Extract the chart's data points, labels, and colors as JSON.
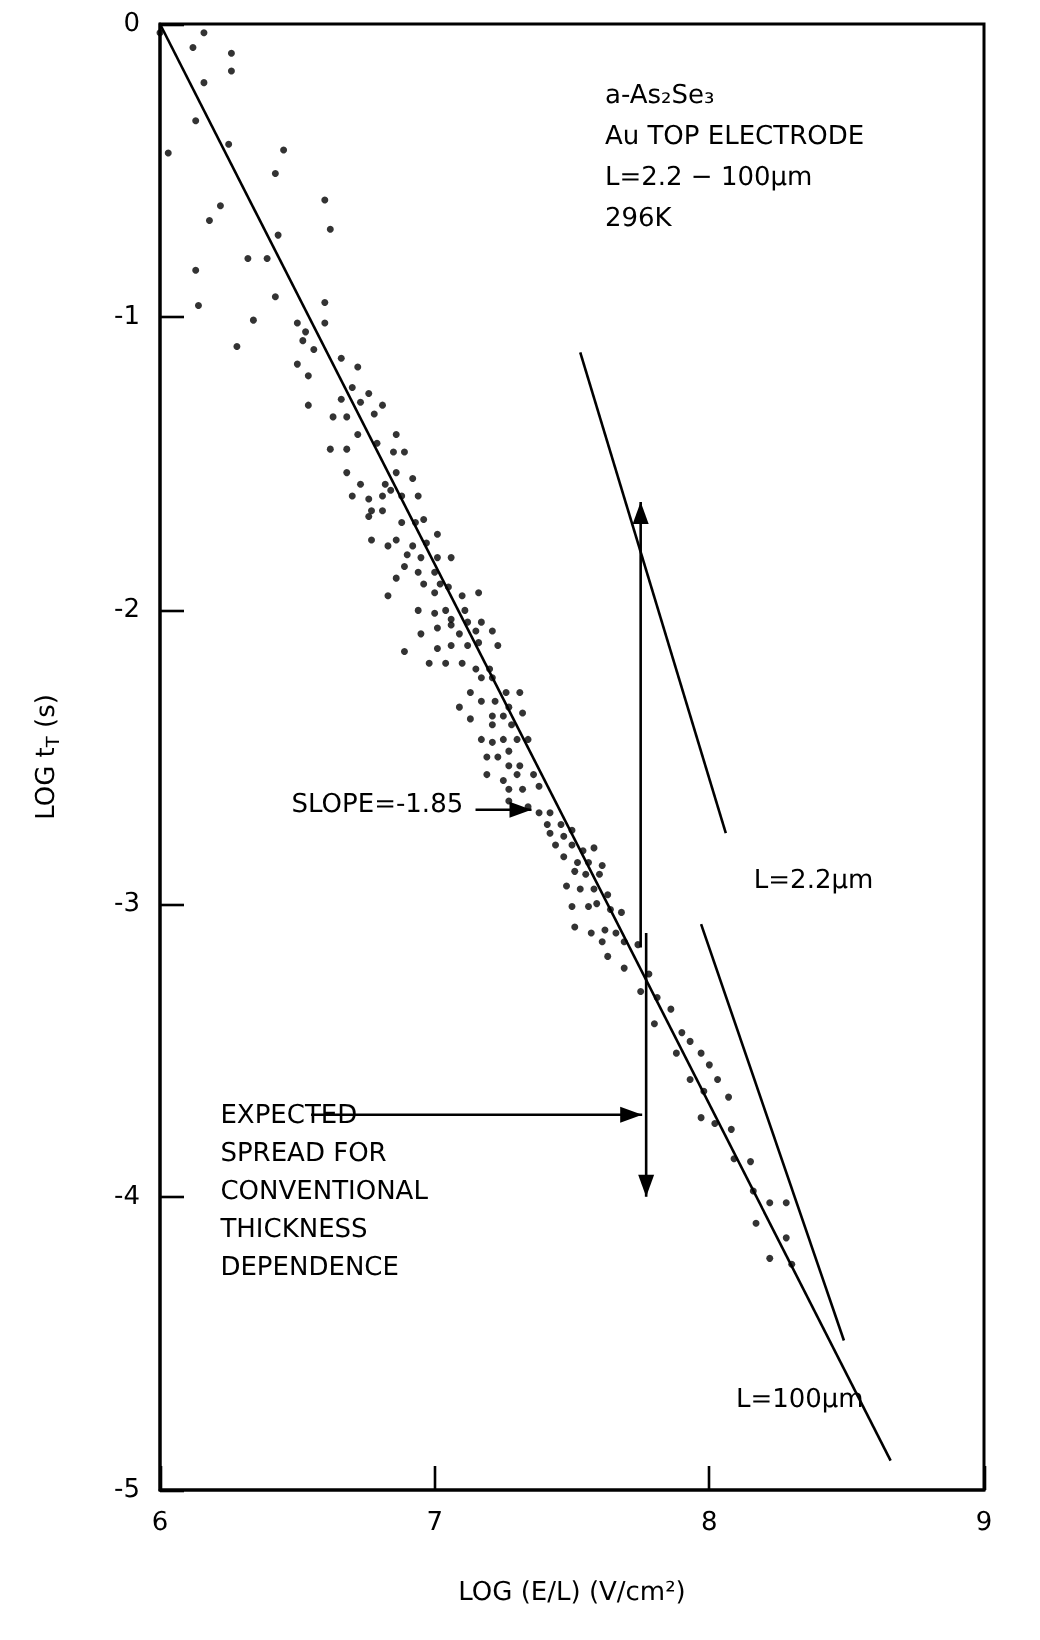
{
  "chart_data": {
    "type": "scatter",
    "xlabel": "LOG (E/L) (V/cm²)",
    "ylabel": "LOG t$_{T}$ (s)",
    "xlim": [
      6,
      9
    ],
    "xticks": [
      6,
      7,
      8,
      9
    ],
    "ylim": [
      -5,
      0
    ],
    "yticks": [
      -5,
      -4,
      -3,
      -2,
      -1,
      0
    ],
    "grid": false,
    "legend": false,
    "annotations": [
      "a-As₂Se₃",
      "Au TOP ELECTRODE",
      "L=2.2 − 100µm",
      "296K",
      "SLOPE=-1.85",
      "EXPECTED SPREAD FOR CONVENTIONAL THICKNESS DEPENDENCE"
    ],
    "series": [
      {
        "color": "#000000",
        "marker": "circle",
        "x": [
          6.0,
          6.16,
          6.12,
          6.26,
          6.26,
          6.16,
          6.13,
          6.03,
          6.25,
          6.45,
          6.42,
          6.22,
          6.18,
          6.6,
          6.62,
          6.43,
          6.32,
          6.39,
          6.13,
          6.14,
          6.42,
          6.6,
          6.6,
          6.34,
          6.28,
          6.5,
          6.53,
          6.52,
          6.56,
          6.5,
          6.54,
          6.66,
          6.72,
          6.54,
          6.66,
          6.7,
          6.76,
          6.81,
          6.78,
          6.63,
          6.68,
          6.73,
          6.72,
          6.86,
          6.62,
          6.68,
          6.79,
          6.85,
          6.89,
          6.68,
          6.73,
          6.82,
          6.86,
          6.92,
          6.7,
          6.76,
          6.81,
          6.84,
          6.88,
          6.94,
          6.77,
          6.81,
          6.76,
          6.88,
          6.93,
          6.96,
          6.77,
          6.83,
          6.86,
          6.92,
          6.97,
          7.01,
          6.9,
          6.95,
          7.01,
          7.06,
          6.89,
          6.94,
          7.0,
          6.86,
          6.96,
          7.02,
          7.05,
          6.83,
          7.0,
          7.1,
          7.16,
          6.94,
          7.0,
          7.04,
          7.11,
          7.06,
          7.12,
          7.17,
          6.95,
          7.01,
          7.06,
          7.09,
          7.15,
          7.21,
          7.01,
          7.06,
          7.12,
          7.16,
          7.23,
          6.89,
          6.98,
          7.04,
          7.1,
          7.15,
          7.2,
          7.17,
          7.21,
          7.26,
          7.31,
          7.13,
          7.17,
          7.22,
          7.09,
          7.27,
          7.13,
          7.21,
          7.25,
          7.32,
          7.21,
          7.28,
          7.17,
          7.21,
          7.25,
          7.3,
          7.34,
          7.19,
          7.23,
          7.27,
          7.27,
          7.31,
          7.19,
          7.25,
          7.3,
          7.36,
          7.27,
          7.32,
          7.38,
          7.27,
          7.34,
          7.38,
          7.42,
          7.41,
          7.46,
          7.42,
          7.47,
          7.5,
          7.44,
          7.5,
          7.54,
          7.58,
          7.47,
          7.52,
          7.56,
          7.61,
          7.51,
          7.55,
          7.6,
          7.48,
          7.53,
          7.58,
          7.63,
          7.5,
          7.56,
          7.59,
          7.64,
          7.68,
          7.51,
          7.57,
          7.62,
          7.66,
          7.61,
          7.69,
          7.74,
          7.63,
          7.69,
          7.78,
          7.75,
          7.81,
          7.86,
          7.8,
          7.9,
          7.93,
          7.88,
          7.97,
          8.0,
          7.93,
          8.03,
          7.98,
          8.07,
          7.97,
          8.02,
          8.08,
          8.09,
          8.15,
          8.16,
          8.22,
          8.28,
          8.17,
          8.28,
          8.22,
          8.3
        ],
        "values": [
          -0.03,
          -0.03,
          -0.08,
          -0.1,
          -0.16,
          -0.2,
          -0.33,
          -0.44,
          -0.41,
          -0.43,
          -0.51,
          -0.62,
          -0.67,
          -0.6,
          -0.7,
          -0.72,
          -0.8,
          -0.8,
          -0.84,
          -0.96,
          -0.93,
          -0.95,
          -1.02,
          -1.01,
          -1.1,
          -1.02,
          -1.05,
          -1.08,
          -1.11,
          -1.16,
          -1.2,
          -1.14,
          -1.17,
          -1.3,
          -1.28,
          -1.24,
          -1.26,
          -1.3,
          -1.33,
          -1.34,
          -1.34,
          -1.29,
          -1.4,
          -1.4,
          -1.45,
          -1.45,
          -1.43,
          -1.46,
          -1.46,
          -1.53,
          -1.57,
          -1.57,
          -1.53,
          -1.55,
          -1.61,
          -1.62,
          -1.61,
          -1.59,
          -1.61,
          -1.61,
          -1.66,
          -1.66,
          -1.68,
          -1.7,
          -1.7,
          -1.69,
          -1.76,
          -1.78,
          -1.76,
          -1.78,
          -1.77,
          -1.74,
          -1.81,
          -1.82,
          -1.82,
          -1.82,
          -1.85,
          -1.87,
          -1.87,
          -1.89,
          -1.91,
          -1.91,
          -1.92,
          -1.95,
          -1.94,
          -1.95,
          -1.94,
          -2.0,
          -2.01,
          -2.0,
          -2.0,
          -2.03,
          -2.04,
          -2.04,
          -2.08,
          -2.06,
          -2.05,
          -2.08,
          -2.07,
          -2.07,
          -2.13,
          -2.12,
          -2.12,
          -2.11,
          -2.12,
          -2.14,
          -2.18,
          -2.18,
          -2.18,
          -2.2,
          -2.2,
          -2.23,
          -2.23,
          -2.28,
          -2.28,
          -2.28,
          -2.31,
          -2.31,
          -2.33,
          -2.33,
          -2.37,
          -2.36,
          -2.36,
          -2.35,
          -2.39,
          -2.39,
          -2.44,
          -2.45,
          -2.44,
          -2.44,
          -2.44,
          -2.5,
          -2.5,
          -2.48,
          -2.53,
          -2.53,
          -2.56,
          -2.58,
          -2.56,
          -2.56,
          -2.61,
          -2.61,
          -2.6,
          -2.65,
          -2.67,
          -2.69,
          -2.69,
          -2.73,
          -2.73,
          -2.76,
          -2.77,
          -2.75,
          -2.8,
          -2.8,
          -2.82,
          -2.81,
          -2.84,
          -2.86,
          -2.86,
          -2.87,
          -2.89,
          -2.9,
          -2.9,
          -2.94,
          -2.95,
          -2.95,
          -2.97,
          -3.01,
          -3.01,
          -3.0,
          -3.02,
          -3.03,
          -3.08,
          -3.1,
          -3.09,
          -3.1,
          -3.13,
          -3.13,
          -3.14,
          -3.18,
          -3.22,
          -3.24,
          -3.3,
          -3.32,
          -3.36,
          -3.41,
          -3.44,
          -3.47,
          -3.51,
          -3.51,
          -3.55,
          -3.6,
          -3.6,
          -3.64,
          -3.66,
          -3.73,
          -3.75,
          -3.77,
          -3.87,
          -3.88,
          -3.98,
          -4.02,
          -4.02,
          -4.09,
          -4.14,
          -4.21,
          -4.23
        ]
      },
      {
        "type": "line",
        "color": "#000000",
        "marker": "none",
        "line_style": "solid",
        "x": [
          6.0,
          8.66
        ],
        "values": [
          0,
          -4.9
        ]
      },
      {
        "type": "line",
        "name": "L=2.2µm",
        "color": "#000000",
        "marker": "none",
        "line_style": "solid",
        "x": [
          7.53,
          8.06
        ],
        "values": [
          -1.12,
          -2.76
        ]
      },
      {
        "type": "line",
        "name": "L=100µm",
        "color": "#000000",
        "marker": "none",
        "line_style": "solid",
        "x": [
          7.97,
          8.49
        ],
        "values": [
          -3.07,
          -4.49
        ]
      }
    ]
  }
}
